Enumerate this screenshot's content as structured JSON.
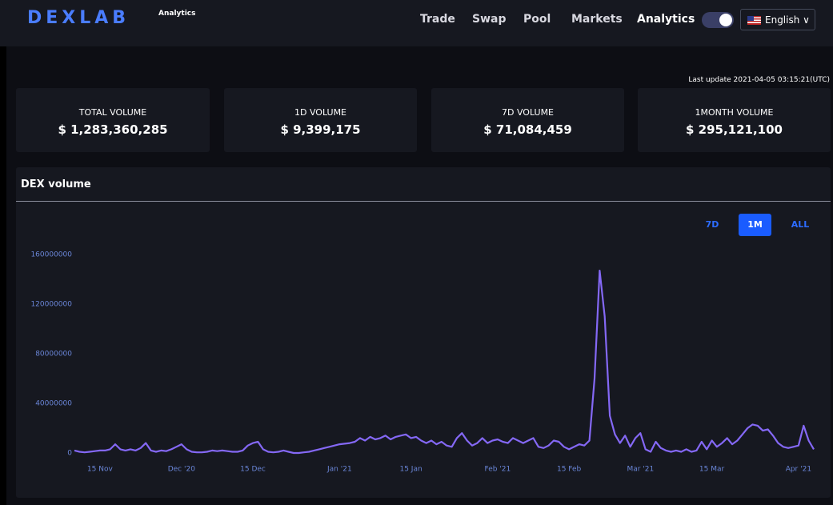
{
  "header": {
    "logo": "DEXLAB",
    "logo_sub": "Analytics",
    "nav": [
      "Trade",
      "Swap",
      "Pool",
      "Markets",
      "Analytics"
    ],
    "language": "English"
  },
  "last_update": "Last update 2021-04-05 03:15:21(UTC)",
  "stats": [
    {
      "label": "TOTAL VOLUME",
      "value": "$ 1,283,360,285"
    },
    {
      "label": "1D VOLUME",
      "value": "$ 9,399,175"
    },
    {
      "label": "7D VOLUME",
      "value": "$ 71,084,459"
    },
    {
      "label": "1MONTH VOLUME",
      "value": "$ 295,121,100"
    }
  ],
  "ranges": [
    "7D",
    "1M",
    "ALL"
  ],
  "chart_data": {
    "type": "line",
    "title": "DEX volume",
    "categories": [
      null,
      null,
      null,
      null,
      null,
      "15 Nov",
      null,
      null,
      null,
      null,
      null,
      null,
      null,
      null,
      null,
      null,
      null,
      null,
      null,
      null,
      null,
      "Dec '20",
      null,
      null,
      null,
      null,
      null,
      null,
      null,
      null,
      null,
      null,
      null,
      null,
      null,
      "15 Dec",
      null,
      null,
      null,
      null,
      null,
      null,
      null,
      null,
      null,
      null,
      null,
      null,
      null,
      null,
      null,
      null,
      "Jan '21",
      null,
      null,
      null,
      null,
      null,
      null,
      null,
      null,
      null,
      null,
      null,
      null,
      null,
      "15 Jan",
      null,
      null,
      null,
      null,
      null,
      null,
      null,
      null,
      null,
      null,
      null,
      null,
      null,
      null,
      null,
      null,
      "Feb '21",
      null,
      null,
      null,
      null,
      null,
      null,
      null,
      null,
      null,
      null,
      null,
      null,
      null,
      "15 Feb",
      null,
      null,
      null,
      null,
      null,
      null,
      null,
      null,
      null,
      null,
      null,
      null,
      null,
      "Mar '21",
      null,
      null,
      null,
      null,
      null,
      null,
      null,
      null,
      null,
      null,
      null,
      null,
      null,
      "15 Mar",
      null,
      null,
      null,
      null,
      null,
      null,
      null,
      null,
      null,
      null,
      null,
      null,
      null,
      null,
      null,
      null,
      "Apr '21",
      null,
      null,
      null
    ],
    "series": [
      {
        "name": "DEX volume",
        "color": "#8468f5",
        "values": [
          2000000,
          1000000,
          500000,
          1000000,
          1500000,
          2000000,
          2000000,
          3000000,
          7000000,
          3000000,
          2000000,
          3000000,
          2000000,
          4000000,
          8000000,
          2000000,
          1000000,
          2000000,
          1500000,
          3000000,
          5000000,
          7000000,
          3000000,
          1000000,
          500000,
          500000,
          1000000,
          2000000,
          1500000,
          2000000,
          1500000,
          1000000,
          1000000,
          2000000,
          6000000,
          8000000,
          9000000,
          3000000,
          1000000,
          500000,
          1000000,
          2000000,
          1000000,
          0,
          0,
          500000,
          1000000,
          2000000,
          3000000,
          4000000,
          5000000,
          6000000,
          7000000,
          7500000,
          8000000,
          9000000,
          12000000,
          10000000,
          13000000,
          11000000,
          12000000,
          14000000,
          11000000,
          13000000,
          14000000,
          15000000,
          12000000,
          13000000,
          10000000,
          8000000,
          10000000,
          7000000,
          9000000,
          6000000,
          5000000,
          12000000,
          16000000,
          10000000,
          6000000,
          8000000,
          12000000,
          8000000,
          10000000,
          11000000,
          9000000,
          8000000,
          12000000,
          10000000,
          8000000,
          10000000,
          12000000,
          5000000,
          4000000,
          6000000,
          10000000,
          9000000,
          5000000,
          3000000,
          5000000,
          7000000,
          6000000,
          10000000,
          60000000,
          147000000,
          110000000,
          30000000,
          15000000,
          8000000,
          14000000,
          5000000,
          12000000,
          16000000,
          3000000,
          1000000,
          9000000,
          4000000,
          2000000,
          1000000,
          2000000,
          1000000,
          3000000,
          1000000,
          2000000,
          9000000,
          3000000,
          10000000,
          5000000,
          8000000,
          12000000,
          7000000,
          10000000,
          15000000,
          20000000,
          23000000,
          22000000,
          18000000,
          19000000,
          14000000,
          8000000,
          5000000,
          4000000,
          5000000,
          6000000,
          22000000,
          10000000,
          3000000
        ]
      }
    ],
    "ylim": [
      0,
      160000000
    ],
    "yticks": [
      0,
      40000000,
      80000000,
      120000000,
      160000000
    ],
    "grid": false
  }
}
